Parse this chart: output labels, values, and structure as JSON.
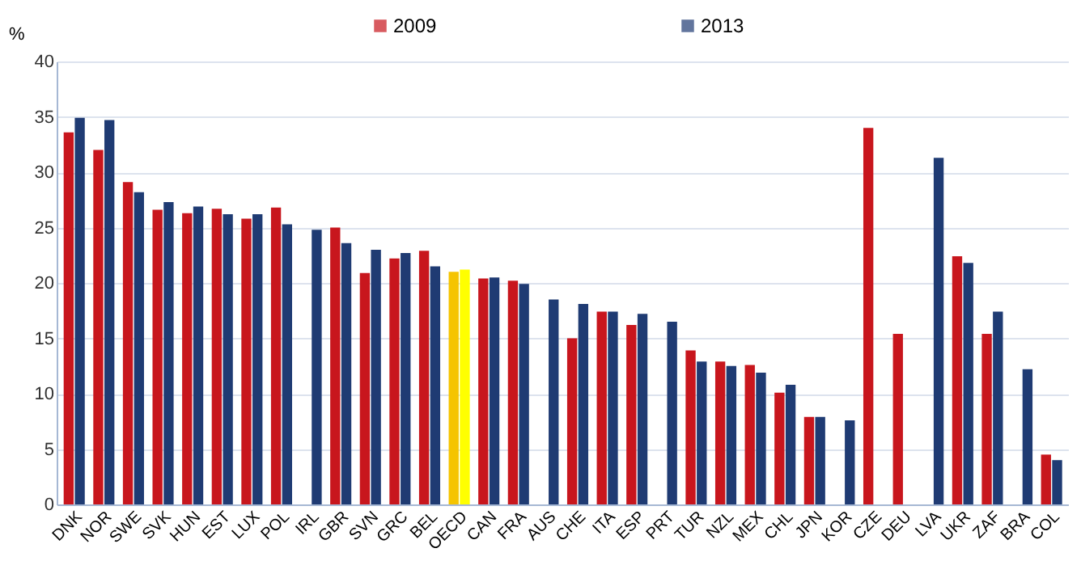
{
  "chart_data": {
    "type": "bar",
    "ylabel": "%",
    "categories": [
      "DNK",
      "NOR",
      "SWE",
      "SVK",
      "HUN",
      "EST",
      "LUX",
      "POL",
      "IRL",
      "GBR",
      "SVN",
      "GRC",
      "BEL",
      "OECD",
      "CAN",
      "FRA",
      "AUS",
      "CHE",
      "ITA",
      "ESP",
      "PRT",
      "TUR",
      "NZL",
      "MEX",
      "CHL",
      "JPN",
      "KOR",
      "CZE",
      "DEU",
      "LVA",
      "UKR",
      "ZAF",
      "BRA",
      "COL"
    ],
    "series": [
      {
        "name": "2009",
        "color": "#c8161d",
        "colors": [
          "#c8161d",
          "#c8161d",
          "#c8161d",
          "#c8161d",
          "#c8161d",
          "#c8161d",
          "#c8161d",
          "#c8161d",
          "#c8161d",
          "#c8161d",
          "#c8161d",
          "#c8161d",
          "#c8161d",
          "#f5c400",
          "#c8161d",
          "#c8161d",
          "#c8161d",
          "#c8161d",
          "#c8161d",
          "#c8161d",
          "#c8161d",
          "#c8161d",
          "#c8161d",
          "#c8161d",
          "#c8161d",
          "#c8161d",
          "#c8161d",
          "#c8161d",
          "#c8161d",
          "#c8161d",
          "#c8161d",
          "#c8161d",
          "#c8161d",
          "#c8161d"
        ],
        "values": [
          33.6,
          32.0,
          29.1,
          26.6,
          26.3,
          26.7,
          25.8,
          26.8,
          null,
          25.0,
          20.9,
          22.2,
          22.9,
          21.0,
          20.4,
          20.2,
          null,
          15.0,
          17.4,
          16.2,
          null,
          13.9,
          12.9,
          12.6,
          10.1,
          7.9,
          null,
          34.0,
          15.4,
          null,
          22.4,
          15.4,
          null,
          4.5
        ]
      },
      {
        "name": "2013",
        "color": "#1f3b73",
        "colors": [
          "#1f3b73",
          "#1f3b73",
          "#1f3b73",
          "#1f3b73",
          "#1f3b73",
          "#1f3b73",
          "#1f3b73",
          "#1f3b73",
          "#1f3b73",
          "#1f3b73",
          "#1f3b73",
          "#1f3b73",
          "#1f3b73",
          "#ffff00",
          "#1f3b73",
          "#1f3b73",
          "#1f3b73",
          "#1f3b73",
          "#1f3b73",
          "#1f3b73",
          "#1f3b73",
          "#1f3b73",
          "#1f3b73",
          "#1f3b73",
          "#1f3b73",
          "#1f3b73",
          "#1f3b73",
          "#1f3b73",
          "#1f3b73",
          "#1f3b73",
          "#1f3b73",
          "#1f3b73",
          "#1f3b73",
          "#1f3b73"
        ],
        "values": [
          34.9,
          34.7,
          28.2,
          27.3,
          26.9,
          26.2,
          26.2,
          25.3,
          24.8,
          23.6,
          23.0,
          22.7,
          21.5,
          21.2,
          20.5,
          19.9,
          18.5,
          18.1,
          17.4,
          17.2,
          16.5,
          12.9,
          12.5,
          11.9,
          10.8,
          7.9,
          7.6,
          null,
          null,
          31.3,
          21.8,
          17.4,
          12.2,
          4.0
        ]
      }
    ],
    "ylim": [
      0,
      40
    ],
    "yticks": [
      0,
      5,
      10,
      15,
      20,
      25,
      30,
      35,
      40
    ],
    "grid": "y",
    "legend": "top"
  }
}
